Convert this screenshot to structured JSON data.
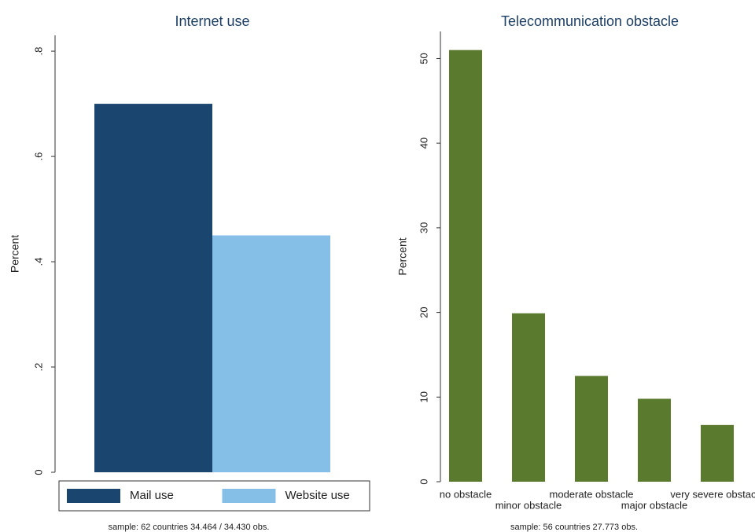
{
  "chart_data": [
    {
      "type": "bar",
      "title": "Internet use",
      "y_label": "Percent",
      "categories": [
        null
      ],
      "series": [
        {
          "name": "Mail use",
          "color": "#1a456e",
          "values": [
            0.7
          ]
        },
        {
          "name": "Website use",
          "color": "#85bfe7",
          "values": [
            0.45
          ]
        }
      ],
      "ylim": [
        0,
        0.83
      ],
      "yticks": [
        0,
        {
          "value": 0.2,
          "label": ".2"
        },
        {
          "value": 0.4,
          "label": ".4"
        },
        {
          "value": 0.6,
          "label": ".6"
        },
        {
          "value": 0.8,
          "label": ".8"
        }
      ],
      "grid": false,
      "legend": "bottom",
      "note": "sample: 62 countries 34.464 / 34.430 obs."
    },
    {
      "type": "bar",
      "title": "Telecommunication obstacle",
      "y_label": "Percent",
      "categories": [
        "no obstacle",
        "minor obstacle",
        "moderate obstacle",
        "major obstacle",
        "very severe obstacle"
      ],
      "values": [
        51.0,
        19.9,
        12.5,
        9.8,
        6.7
      ],
      "color": "#5a7a2e",
      "ylim": [
        0,
        53.2
      ],
      "yticks": [
        0,
        10,
        20,
        30,
        40,
        50
      ],
      "grid": false,
      "note": "sample: 56 countries 27.773 obs."
    }
  ]
}
